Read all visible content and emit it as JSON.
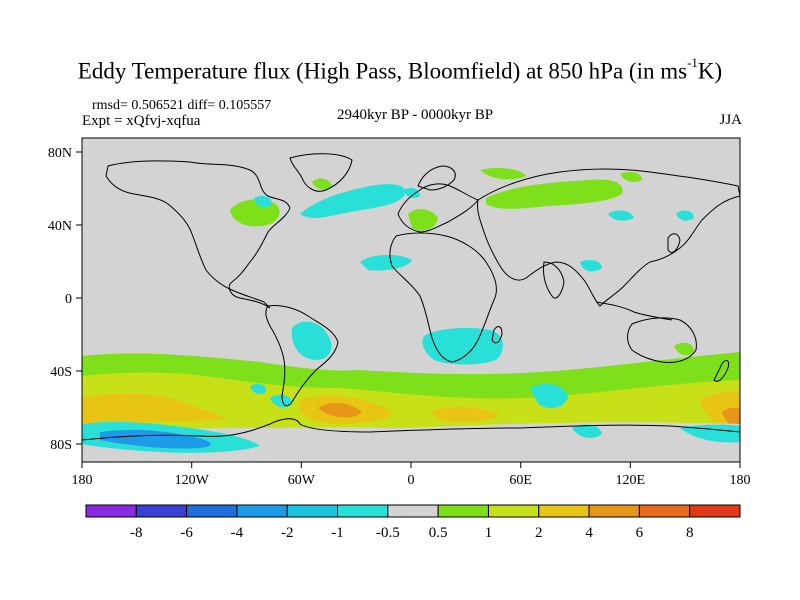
{
  "title": {
    "main": "Eddy Temperature flux (High Pass, Bloomfield) at 850 hPa (in ms",
    "sup": "-1",
    "end": "K)"
  },
  "stats": "rmsd= 0.506521 diff= 0.105557",
  "expt": "Expt = xQfvj-xqfua",
  "period": "2940kyr BP - 0000kyr BP",
  "season": "JJA",
  "axes": {
    "lon_labels": [
      "180",
      "120W",
      "60W",
      "0",
      "60E",
      "120E",
      "180"
    ],
    "lat_labels": [
      "80N",
      "40N",
      "0",
      "40S",
      "80S"
    ]
  },
  "colorbar": {
    "labels": [
      "-8",
      "-6",
      "-4",
      "-2",
      "-1",
      "-0.5",
      "0.5",
      "1",
      "2",
      "4",
      "6",
      "8"
    ],
    "colors": [
      "#8a2be2",
      "#3a3fd6",
      "#1f6fe0",
      "#1e9be8",
      "#1cc3e0",
      "#29e0d8",
      "#d3d3d3",
      "#7ee01a",
      "#c8e018",
      "#e8c414",
      "#e8961a",
      "#e86a1e",
      "#e03a1a"
    ]
  },
  "map_colors": {
    "background": "#d3d3d3",
    "coast": "#000000"
  }
}
